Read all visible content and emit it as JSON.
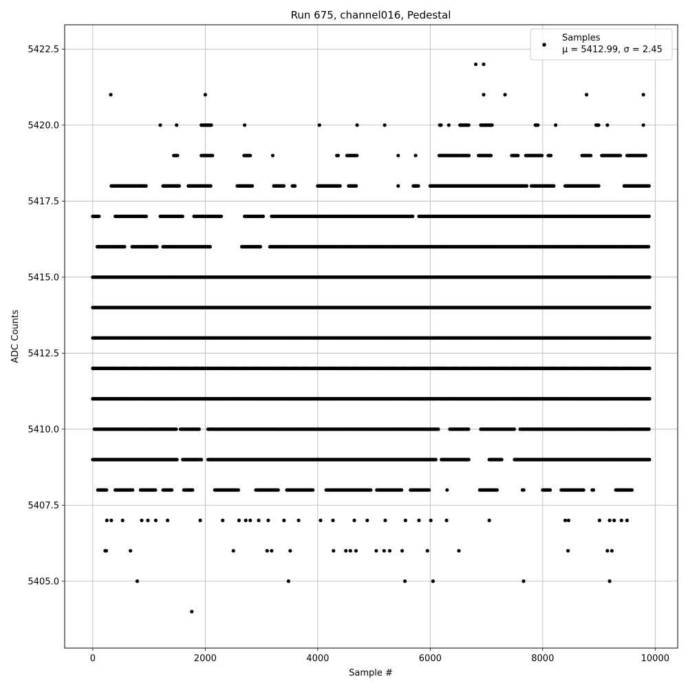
{
  "chart_data": {
    "type": "scatter",
    "title": "Run 675, channel016, Pedestal",
    "xlabel": "Sample #",
    "ylabel": "ADC Counts",
    "xlim": [
      -500,
      10400
    ],
    "ylim": [
      5402.8,
      5423.3
    ],
    "xticks": [
      0,
      2000,
      4000,
      6000,
      8000,
      10000
    ],
    "yticks": [
      5405.0,
      5407.5,
      5410.0,
      5412.5,
      5415.0,
      5417.5,
      5420.0,
      5422.5
    ],
    "xtick_labels": [
      "0",
      "2000",
      "4000",
      "6000",
      "8000",
      "10000"
    ],
    "ytick_labels": [
      "5405.0",
      "5407.5",
      "5410.0",
      "5412.5",
      "5415.0",
      "5417.5",
      "5420.0",
      "5422.5"
    ],
    "grid": true,
    "legend_position": "top-right",
    "marker_color": "#000000",
    "series": [
      {
        "name": "Samples",
        "note": "μ = 5412.99, σ = 2.45",
        "points": [
          [
            320,
            5421
          ],
          [
            2000,
            5421
          ],
          [
            6950,
            5421
          ],
          [
            7330,
            5421
          ],
          [
            8780,
            5421
          ],
          [
            9790,
            5421
          ],
          [
            6810,
            5422
          ],
          [
            6950,
            5422
          ],
          [
            1760,
            5404
          ],
          [
            790,
            5405
          ],
          [
            3480,
            5405
          ],
          [
            5550,
            5405
          ],
          [
            6050,
            5405
          ],
          [
            7660,
            5405
          ],
          [
            9190,
            5405
          ],
          [
            220,
            5406
          ],
          [
            240,
            5406
          ],
          [
            670,
            5406
          ],
          [
            2500,
            5406
          ],
          [
            3100,
            5406
          ],
          [
            3180,
            5406
          ],
          [
            3510,
            5406
          ],
          [
            4280,
            5406
          ],
          [
            4500,
            5406
          ],
          [
            4580,
            5406
          ],
          [
            4680,
            5406
          ],
          [
            5040,
            5406
          ],
          [
            5180,
            5406
          ],
          [
            5280,
            5406
          ],
          [
            5500,
            5406
          ],
          [
            5950,
            5406
          ],
          [
            6510,
            5406
          ],
          [
            8450,
            5406
          ],
          [
            9150,
            5406
          ],
          [
            9230,
            5406
          ],
          [
            250,
            5407
          ],
          [
            330,
            5407
          ],
          [
            530,
            5407
          ],
          [
            870,
            5407
          ],
          [
            980,
            5407
          ],
          [
            1120,
            5407
          ],
          [
            1330,
            5407
          ],
          [
            1910,
            5407
          ],
          [
            2310,
            5407
          ],
          [
            2600,
            5407
          ],
          [
            2720,
            5407
          ],
          [
            2800,
            5407
          ],
          [
            2950,
            5407
          ],
          [
            3120,
            5407
          ],
          [
            3400,
            5407
          ],
          [
            3660,
            5407
          ],
          [
            4050,
            5407
          ],
          [
            4270,
            5407
          ],
          [
            4650,
            5407
          ],
          [
            4880,
            5407
          ],
          [
            5200,
            5407
          ],
          [
            5560,
            5407
          ],
          [
            5800,
            5407
          ],
          [
            6010,
            5407
          ],
          [
            6290,
            5407
          ],
          [
            7050,
            5407
          ],
          [
            8400,
            5407
          ],
          [
            8460,
            5407
          ],
          [
            9010,
            5407
          ],
          [
            9190,
            5407
          ],
          [
            9270,
            5407
          ],
          [
            9400,
            5407
          ],
          [
            9500,
            5407
          ]
        ],
        "bands": [
          {
            "y": 5408,
            "x_ranges": [
              [
                90,
                260
              ],
              [
                400,
                720
              ],
              [
                850,
                1130
              ],
              [
                1250,
                1420
              ],
              [
                1620,
                1780
              ],
              [
                2170,
                2600
              ],
              [
                2900,
                3300
              ],
              [
                3450,
                3920
              ],
              [
                4150,
                4950
              ],
              [
                5050,
                5500
              ],
              [
                5650,
                6000
              ],
              [
                6300,
                6300
              ],
              [
                6880,
                7200
              ],
              [
                7640,
                7680
              ],
              [
                8000,
                8150
              ],
              [
                8330,
                8740
              ],
              [
                8880,
                8920
              ],
              [
                9300,
                9600
              ]
            ]
          },
          {
            "y": 5409,
            "x_ranges": [
              [
                0,
                1500
              ],
              [
                1600,
                1950
              ],
              [
                2050,
                6100
              ],
              [
                6200,
                6700
              ],
              [
                7050,
                7280
              ],
              [
                7500,
                9900
              ]
            ]
          },
          {
            "y": 5410,
            "x_ranges": [
              [
                30,
                1500
              ],
              [
                1560,
                1900
              ],
              [
                2050,
                6160
              ],
              [
                6350,
                6700
              ],
              [
                6900,
                7500
              ],
              [
                7600,
                9900
              ]
            ]
          },
          {
            "y": 5411,
            "x_ranges": [
              [
                0,
                9900
              ]
            ]
          },
          {
            "y": 5412,
            "x_ranges": [
              [
                0,
                9900
              ]
            ]
          },
          {
            "y": 5413,
            "x_ranges": [
              [
                0,
                9900
              ]
            ]
          },
          {
            "y": 5414,
            "x_ranges": [
              [
                0,
                9900
              ]
            ]
          },
          {
            "y": 5415,
            "x_ranges": [
              [
                0,
                9900
              ]
            ]
          },
          {
            "y": 5416,
            "x_ranges": [
              [
                80,
                580
              ],
              [
                700,
                1150
              ],
              [
                1250,
                2100
              ],
              [
                2650,
                3000
              ],
              [
                3150,
                9900
              ]
            ]
          },
          {
            "y": 5417,
            "x_ranges": [
              [
                0,
                120
              ],
              [
                400,
                950
              ],
              [
                1200,
                1600
              ],
              [
                1800,
                2300
              ],
              [
                2700,
                3050
              ],
              [
                3180,
                5700
              ],
              [
                5800,
                9900
              ]
            ]
          },
          {
            "y": 5418,
            "x_ranges": [
              [
                330,
                960
              ],
              [
                1250,
                1550
              ],
              [
                1700,
                2100
              ],
              [
                2570,
                2850
              ],
              [
                3220,
                3400
              ],
              [
                3550,
                3600
              ],
              [
                4000,
                4400
              ],
              [
                4550,
                4700
              ],
              [
                5430,
                5450
              ],
              [
                5700,
                5800
              ],
              [
                6000,
                7720
              ],
              [
                7800,
                8200
              ],
              [
                8400,
                9000
              ],
              [
                9450,
                9900
              ]
            ]
          },
          {
            "y": 5419,
            "x_ranges": [
              [
                1440,
                1520
              ],
              [
                1930,
                2140
              ],
              [
                2690,
                2820
              ],
              [
                3200,
                3220
              ],
              [
                4340,
                4380
              ],
              [
                4520,
                4700
              ],
              [
                5430,
                5440
              ],
              [
                5740,
                5760
              ],
              [
                6160,
                6700
              ],
              [
                6860,
                7100
              ],
              [
                7450,
                7570
              ],
              [
                7700,
                8000
              ],
              [
                8100,
                8150
              ],
              [
                8700,
                8870
              ],
              [
                9050,
                9400
              ],
              [
                9500,
                9850
              ]
            ]
          },
          {
            "y": 5420,
            "x_ranges": [
              [
                1200,
                1200
              ],
              [
                1490,
                1490
              ],
              [
                1930,
                2110
              ],
              [
                2700,
                2700
              ],
              [
                4030,
                4030
              ],
              [
                4700,
                4700
              ],
              [
                5190,
                5190
              ],
              [
                6170,
                6200
              ],
              [
                6330,
                6330
              ],
              [
                6530,
                6700
              ],
              [
                6900,
                7100
              ],
              [
                7870,
                7920
              ],
              [
                8230,
                8230
              ],
              [
                8950,
                9000
              ],
              [
                9150,
                9150
              ],
              [
                9790,
                9790
              ]
            ]
          }
        ]
      }
    ]
  }
}
